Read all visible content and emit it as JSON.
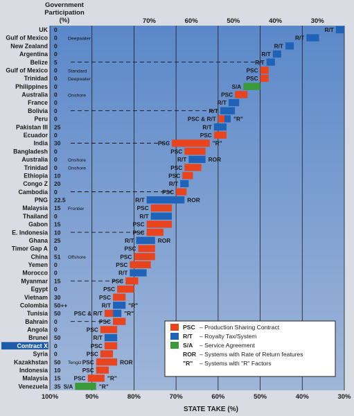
{
  "chart_data": {
    "type": "bar",
    "title": "",
    "header_left": [
      "Government",
      "Participation",
      "(%)"
    ],
    "xlabel": "STATE TAKE (%)",
    "x_direction": "reversed",
    "xlim": [
      100,
      30
    ],
    "x_ticks": [
      100,
      90,
      80,
      70,
      60,
      50,
      40,
      30
    ],
    "x_tick_labels_bottom": [
      "100%",
      "90%",
      "80%",
      "70%",
      "60%",
      "50%",
      "40%",
      "30%"
    ],
    "x_tick_labels_top": [
      "70%",
      "60%",
      "50%",
      "40%",
      "30%"
    ],
    "grid": true,
    "colors": {
      "PSC": "#e8451e",
      "R/T": "#1f63b8",
      "S/A": "#3a9a3a",
      "plot_bg": "#6f95cf",
      "highlight": "#1e5ba8"
    },
    "rows": [
      {
        "country": "UK",
        "gp": "0",
        "note": "",
        "type": "R/T",
        "ror": false,
        "rf": false,
        "take_from": 32.0,
        "take_to": 30.0
      },
      {
        "country": "Gulf of Mexico",
        "gp": "0",
        "note": "Deepwater",
        "type": "R/T",
        "ror": false,
        "rf": false,
        "take_from": 39.0,
        "take_to": 36.0
      },
      {
        "country": "New Zealand",
        "gp": "0",
        "note": "",
        "type": "R/T",
        "ror": false,
        "rf": false,
        "take_from": 44.0,
        "take_to": 42.0
      },
      {
        "country": "Argentina",
        "gp": "0",
        "note": "",
        "type": "R/T",
        "ror": false,
        "rf": false,
        "take_from": 47.0,
        "take_to": 45.0
      },
      {
        "country": "Belize",
        "gp": "5",
        "note": "",
        "type": "R/T",
        "ror": false,
        "rf": false,
        "take_from": 48.5,
        "take_to": 46.5
      },
      {
        "country": "Gulf of Mexico",
        "gp": "0",
        "note": "Standard",
        "type": "PSC",
        "ror": false,
        "rf": false,
        "take_from": 50.0,
        "take_to": 48.0
      },
      {
        "country": "Trinidad",
        "gp": "0",
        "note": "Deepwater",
        "type": "PSC",
        "ror": false,
        "rf": false,
        "take_from": 50.0,
        "take_to": 48.0
      },
      {
        "country": "Philippines",
        "gp": "0",
        "note": "",
        "type": "S/A",
        "ror": false,
        "rf": false,
        "take_from": 54.0,
        "take_to": 50.0
      },
      {
        "country": "Australia",
        "gp": "0",
        "note": "Onshore",
        "type": "PSC",
        "ror": false,
        "rf": false,
        "take_from": 56.0,
        "take_to": 53.0
      },
      {
        "country": "France",
        "gp": "0",
        "note": "",
        "type": "R/T",
        "ror": false,
        "rf": false,
        "take_from": 57.5,
        "take_to": 55.0
      },
      {
        "country": "Bolivia",
        "gp": "0",
        "note": "",
        "type": "R/T",
        "ror": false,
        "rf": false,
        "take_from": 59.5,
        "take_to": 56.0
      },
      {
        "country": "Peru",
        "gp": "0",
        "note": "",
        "type": "PSC & R/T",
        "ror": false,
        "rf": true,
        "take_from": 60.0,
        "take_to": 57.0
      },
      {
        "country": "Pakistan III",
        "gp": "25",
        "note": "",
        "type": "R/T",
        "ror": false,
        "rf": false,
        "take_from": 61.0,
        "take_to": 58.0
      },
      {
        "country": "Ecuador",
        "gp": "0",
        "note": "",
        "type": "PSC",
        "ror": false,
        "rf": false,
        "take_from": 61.0,
        "take_to": 58.0
      },
      {
        "country": "India",
        "gp": "30",
        "note": "",
        "type": "PSC",
        "ror": false,
        "rf": true,
        "take_from": 71.0,
        "take_to": 62.0
      },
      {
        "country": "Bangladesh",
        "gp": "0",
        "note": "",
        "type": "PSC",
        "ror": false,
        "rf": false,
        "take_from": 68.0,
        "take_to": 63.0
      },
      {
        "country": "Australia",
        "gp": "0",
        "note": "Onshore",
        "type": "R/T",
        "ror": true,
        "rf": false,
        "take_from": 67.0,
        "take_to": 63.0
      },
      {
        "country": "Trinidad",
        "gp": "0",
        "note": "Onshore",
        "type": "PSC",
        "ror": false,
        "rf": false,
        "take_from": 68.0,
        "take_to": 64.0
      },
      {
        "country": "Ethiopia",
        "gp": "10",
        "note": "",
        "type": "PSC",
        "ror": false,
        "rf": false,
        "take_from": 68.5,
        "take_to": 66.0
      },
      {
        "country": "Congo Z",
        "gp": "20",
        "note": "",
        "type": "R/T",
        "ror": false,
        "rf": false,
        "take_from": 69.0,
        "take_to": 67.0
      },
      {
        "country": "Cambodia",
        "gp": "0",
        "note": "",
        "type": "PSC",
        "ror": false,
        "rf": false,
        "take_from": 70.0,
        "take_to": 67.5
      },
      {
        "country": "PNG",
        "gp": "22.5",
        "note": "",
        "type": "R/T",
        "ror": true,
        "rf": false,
        "take_from": 77.0,
        "take_to": 68.0
      },
      {
        "country": "Malaysia",
        "gp": "15",
        "note": "Frontier",
        "type": "PSC",
        "ror": false,
        "rf": false,
        "take_from": 76.0,
        "take_to": 71.0
      },
      {
        "country": "Thailand",
        "gp": "0",
        "note": "",
        "type": "R/T",
        "ror": false,
        "rf": false,
        "take_from": 76.0,
        "take_to": 71.0
      },
      {
        "country": "Gabon",
        "gp": "15",
        "note": "",
        "type": "PSC",
        "ror": false,
        "rf": false,
        "take_from": 77.0,
        "take_to": 71.0
      },
      {
        "country": "E. Indonesia",
        "gp": "10",
        "note": "",
        "type": "PSC",
        "ror": false,
        "rf": false,
        "take_from": 77.0,
        "take_to": 73.0
      },
      {
        "country": "Ghana",
        "gp": "25",
        "note": "",
        "type": "R/T",
        "ror": true,
        "rf": false,
        "take_from": 79.5,
        "take_to": 75.0
      },
      {
        "country": "Timor Gap A",
        "gp": "0",
        "note": "",
        "type": "PSC",
        "ror": false,
        "rf": false,
        "take_from": 79.0,
        "take_to": 75.0
      },
      {
        "country": "China",
        "gp": "51",
        "note": "Offshore",
        "type": "PSC",
        "ror": false,
        "rf": false,
        "take_from": 80.0,
        "take_to": 75.0
      },
      {
        "country": "Yemen",
        "gp": "0",
        "note": "",
        "type": "PSC",
        "ror": false,
        "rf": false,
        "take_from": 81.0,
        "take_to": 76.0
      },
      {
        "country": "Morocco",
        "gp": "0",
        "note": "",
        "type": "R/T",
        "ror": false,
        "rf": false,
        "take_from": 81.0,
        "take_to": 77.0
      },
      {
        "country": "Myanmar",
        "gp": "15",
        "note": "",
        "type": "PSC",
        "ror": false,
        "rf": false,
        "take_from": 82.0,
        "take_to": 79.0
      },
      {
        "country": "Egypt",
        "gp": "0",
        "note": "",
        "type": "PSC",
        "ror": false,
        "rf": false,
        "take_from": 84.0,
        "take_to": 80.0
      },
      {
        "country": "Vietnam",
        "gp": "30",
        "note": "",
        "type": "PSC",
        "ror": false,
        "rf": false,
        "take_from": 85.0,
        "take_to": 82.0
      },
      {
        "country": "Colombia",
        "gp": "50++",
        "note": "",
        "type": "R/T",
        "ror": false,
        "rf": true,
        "take_from": 85.0,
        "take_to": 82.0
      },
      {
        "country": "Tunisia",
        "gp": "50",
        "note": "",
        "type": "PSC & R/T",
        "ror": false,
        "rf": true,
        "take_from": 87.0,
        "take_to": 83.0
      },
      {
        "country": "Bahrain",
        "gp": "0",
        "note": "",
        "type": "PSC",
        "ror": false,
        "rf": false,
        "take_from": 85.0,
        "take_to": 82.0
      },
      {
        "country": "Angola",
        "gp": "0",
        "note": "",
        "type": "PSC",
        "ror": false,
        "rf": false,
        "take_from": 88.0,
        "take_to": 84.0
      },
      {
        "country": "Brunei",
        "gp": "50",
        "note": "",
        "type": "R/T",
        "ror": false,
        "rf": false,
        "take_from": 87.0,
        "take_to": 84.0
      },
      {
        "country": "Contract X",
        "gp": "0",
        "note": "",
        "type": "PSC",
        "ror": false,
        "rf": false,
        "take_from": 87.0,
        "take_to": 84.0
      },
      {
        "country": "Syria",
        "gp": "0",
        "note": "",
        "type": "PSC",
        "ror": false,
        "rf": false,
        "take_from": 88.0,
        "take_to": 85.0
      },
      {
        "country": "Kazakhstan",
        "gp": "50",
        "note": "Tengiz",
        "type": "PSC",
        "ror": true,
        "rf": false,
        "take_from": 89.0,
        "take_to": 84.0
      },
      {
        "country": "Indonesia",
        "gp": "10",
        "note": "",
        "type": "PSC",
        "ror": false,
        "rf": false,
        "take_from": 89.0,
        "take_to": 86.0
      },
      {
        "country": "Malaysia",
        "gp": "15",
        "note": "",
        "type": "PSC",
        "ror": false,
        "rf": true,
        "take_from": 91.0,
        "take_to": 87.0
      },
      {
        "country": "Venezuela",
        "gp": "35",
        "note": "",
        "type": "S/A",
        "ror": false,
        "rf": true,
        "take_from": 94.0,
        "take_to": 89.0
      }
    ],
    "annotations": {
      "ror_label": "ROR",
      "rf_label": "\"R\""
    },
    "separator_rows": [
      4,
      10,
      14,
      20,
      25,
      31,
      36
    ],
    "highlight_row": "Contract X",
    "legend": [
      {
        "code": "PSC",
        "desc": "Production Sharing Contract",
        "color": "#e8451e"
      },
      {
        "code": "R/T",
        "desc": "Royalty Tax/System",
        "color": "#1f63b8"
      },
      {
        "code": "S/A",
        "desc": "Service Agreement",
        "color": "#3a9a3a"
      },
      {
        "code": "ROR",
        "desc": "Systems with Rate of Return features",
        "color": ""
      },
      {
        "code": "\"R\"",
        "desc": "Systems with \"R\" Factors",
        "color": ""
      }
    ],
    "legend_position": "bottom-right"
  }
}
